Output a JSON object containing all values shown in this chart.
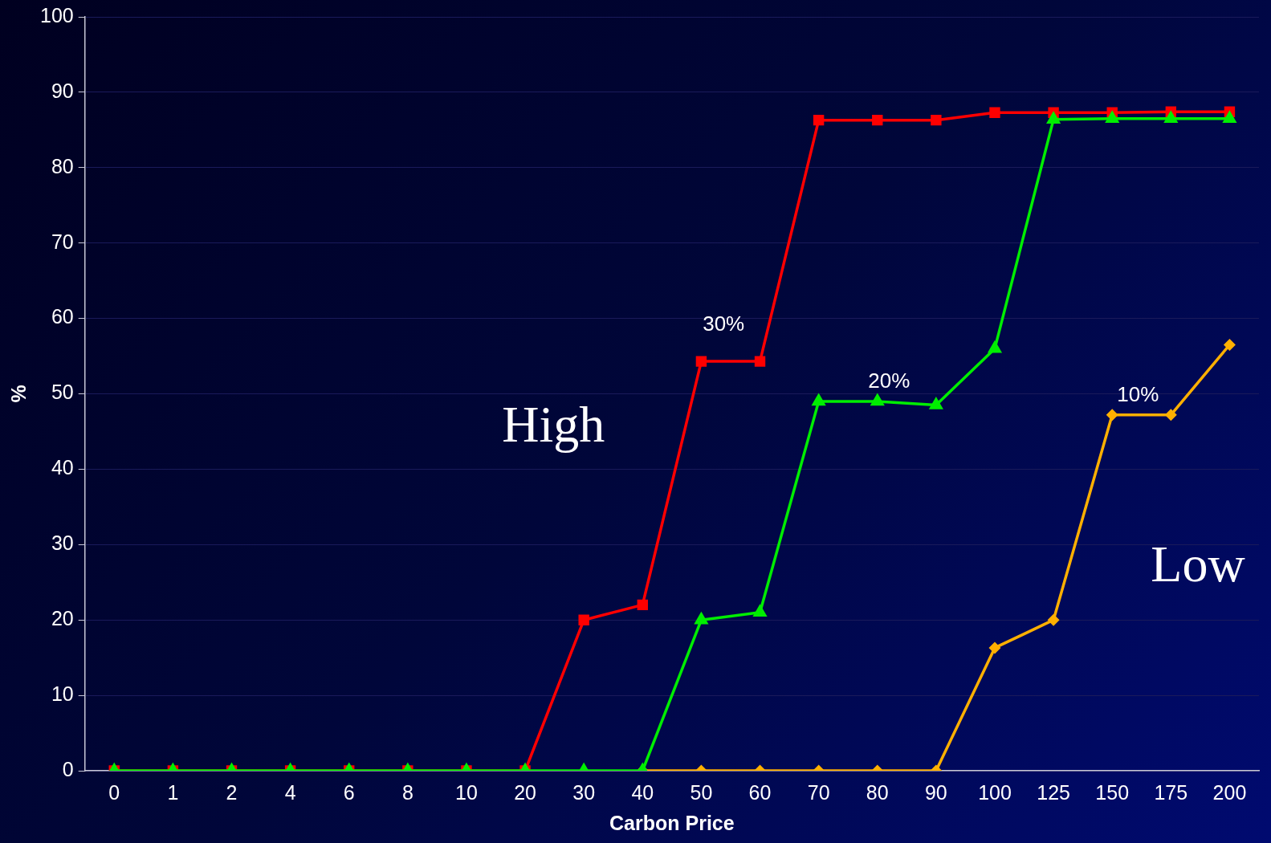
{
  "chart_data": {
    "type": "line",
    "xlabel": "Carbon Price",
    "ylabel": "%",
    "categories": [
      "0",
      "1",
      "2",
      "4",
      "6",
      "8",
      "10",
      "20",
      "30",
      "40",
      "50",
      "60",
      "70",
      "80",
      "90",
      "100",
      "125",
      "150",
      "175",
      "200"
    ],
    "series": [
      {
        "color": "#ffb000",
        "marker": "diamond",
        "values": [
          null,
          null,
          null,
          null,
          null,
          null,
          null,
          null,
          null,
          0,
          0,
          0,
          0,
          0,
          0,
          16.3,
          20,
          47.2,
          47.2,
          56.5
        ]
      },
      {
        "color": "#ff0000",
        "marker": "square",
        "values": [
          0,
          0,
          0,
          0,
          0,
          0,
          0,
          0,
          20,
          22,
          54.3,
          54.3,
          86.3,
          86.3,
          86.3,
          87.3,
          87.3,
          87.3,
          87.4,
          87.4
        ]
      },
      {
        "color": "#00ee00",
        "marker": "triangle",
        "values": [
          0,
          0,
          0,
          0,
          0,
          0,
          0,
          0,
          0,
          0,
          20,
          21,
          49,
          49,
          48.5,
          56,
          86.4,
          86.5,
          86.5,
          86.5
        ]
      }
    ],
    "ylim": [
      0,
      100
    ],
    "yticks": [
      0,
      10,
      20,
      30,
      40,
      50,
      60,
      70,
      80,
      90,
      100
    ],
    "grid": "y",
    "legend": false,
    "annotations": [
      "30%",
      "20%",
      "10%",
      "High",
      "Low"
    ]
  }
}
